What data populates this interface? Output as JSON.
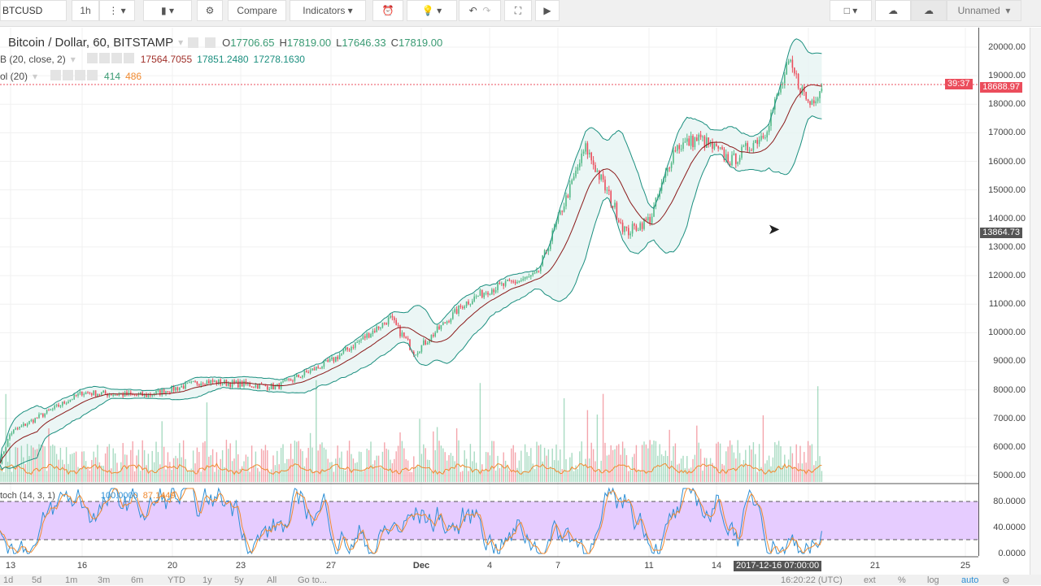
{
  "toolbar": {
    "symbol": "BTCUSD",
    "interval": "1h",
    "compare": "Compare",
    "indicators": "Indicators",
    "layout_name": "Unnamed"
  },
  "legend": {
    "title": "Bitcoin / Dollar, 60, BITSTAMP",
    "open_label": "O",
    "open": "17706.65",
    "high_label": "H",
    "high": "17819.00",
    "low_label": "L",
    "low": "17646.33",
    "close_label": "C",
    "close": "17819.00",
    "bb": {
      "name": "B (20, close, 2)",
      "basis": "17564.7055",
      "upper": "17851.2480",
      "lower": "17278.1630"
    },
    "vol": {
      "name": "ol (20)",
      "v1": "414",
      "v2": "486"
    },
    "stoch": {
      "name": "toch (14, 3, 1)",
      "k": "100.0000",
      "d": "87.1449"
    }
  },
  "price_axis": {
    "labels": [
      "20000.00",
      "19000.00",
      "18000.00",
      "17000.00",
      "16000.00",
      "15000.00",
      "14000.00",
      "13000.00",
      "12000.00",
      "11000.00",
      "10000.00",
      "9000.00",
      "8000.00",
      "7000.00",
      "6000.00",
      "5000.00"
    ],
    "last_price": "18688.97",
    "countdown": "39:37",
    "crosshair_price": "13864.73"
  },
  "stoch_axis": {
    "labels": [
      "80.0000",
      "40.0000",
      "0.0000"
    ]
  },
  "time_axis": {
    "labels": [
      "13",
      "16",
      "20",
      "23",
      "27",
      "Dec",
      "4",
      "7",
      "11",
      "14",
      "21",
      "25"
    ],
    "crosshair_time": "2017-12-16 07:00:00"
  },
  "bottom_bar": {
    "ranges": [
      "1d",
      "5d",
      "1m",
      "3m",
      "6m",
      "YTD",
      "1y",
      "5y",
      "All"
    ],
    "goto": "Go to...",
    "clock": "16:20:22 (UTC)",
    "ext": "ext",
    "percent": "%",
    "log": "log",
    "auto": "auto"
  },
  "colors": {
    "up": "#53b987",
    "down": "#eb4d5c",
    "bb_band": "#1b8f7f",
    "bb_basis": "#8b1a1a",
    "stoch_k": "#2d8fd5",
    "stoch_d": "#f08a30",
    "stoch_fill": "#e6ccff"
  },
  "chart_data": {
    "type": "candlestick",
    "symbol": "BTCUSD",
    "interval": "60",
    "approx_close_path": [
      [
        "Nov 12",
        5500
      ],
      [
        "Nov 13",
        6500
      ],
      [
        "Nov 16",
        7900
      ],
      [
        "Nov 19",
        7800
      ],
      [
        "Nov 22",
        8300
      ],
      [
        "Nov 25",
        8100
      ],
      [
        "Nov 27",
        9000
      ],
      [
        "Nov 29",
        10500
      ],
      [
        "Nov 30",
        9300
      ],
      [
        "Dec 2",
        11000
      ],
      [
        "Dec 3",
        11500
      ],
      [
        "Dec 5",
        12000
      ],
      [
        "Dec 7",
        16500
      ],
      [
        "Dec 9",
        13500
      ],
      [
        "Dec 10",
        14000
      ],
      [
        "Dec 11",
        16500
      ],
      [
        "Dec 12",
        16800
      ],
      [
        "Dec 13",
        16000
      ],
      [
        "Dec 15",
        17000
      ],
      [
        "Dec 16",
        19400
      ],
      [
        "Dec 17",
        18000
      ],
      [
        "Dec 17 16:00",
        18700
      ]
    ]
  }
}
